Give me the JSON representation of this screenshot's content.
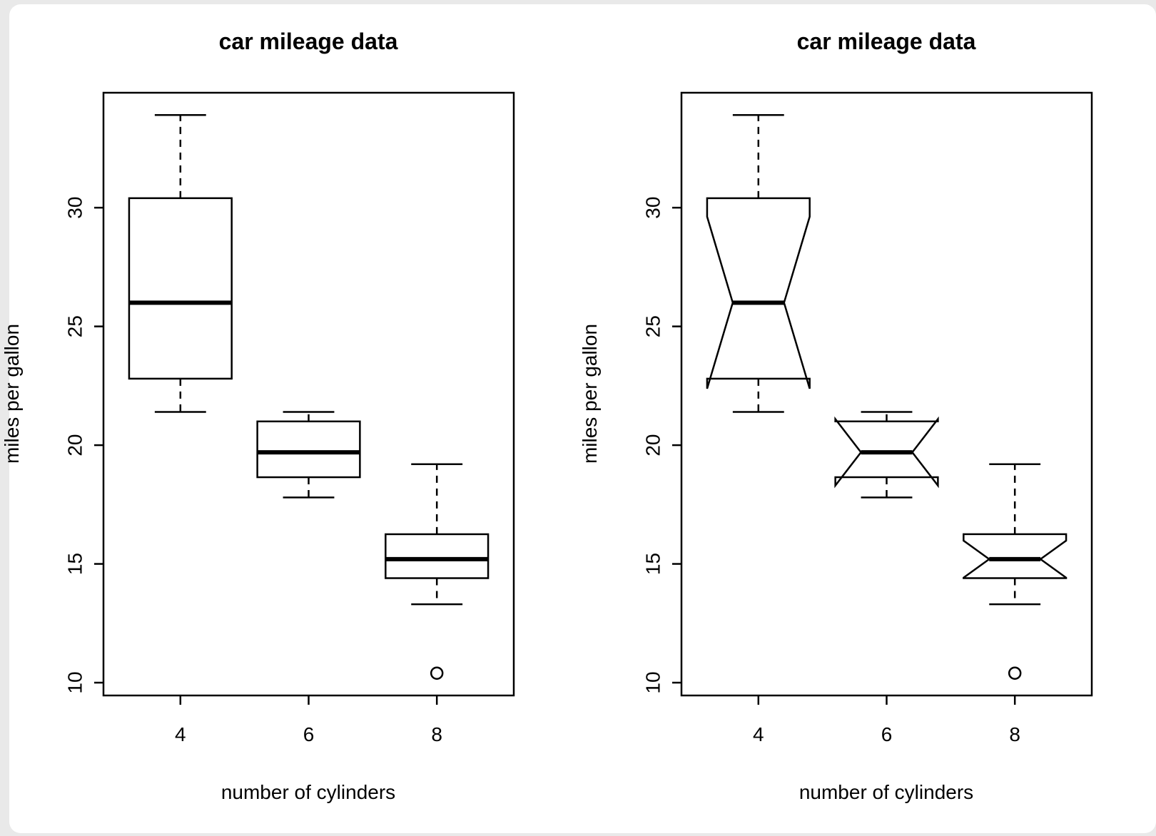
{
  "figure": {
    "surround_color": "#e9e9e9",
    "panel_background": "#ffffff",
    "line_color": "#000000",
    "text_color": "#000000"
  },
  "chart_data": [
    {
      "type": "boxplot",
      "notched": false,
      "title": "car mileage data",
      "xlabel": "number of cylinders",
      "ylabel": "miles per gallon",
      "categories": [
        "4",
        "6",
        "8"
      ],
      "ylim": [
        9.46,
        34.84
      ],
      "yticks": [
        10,
        15,
        20,
        25,
        30
      ],
      "grid": false,
      "legend": "none",
      "boxes": [
        {
          "category": "4",
          "whisker_low": 21.4,
          "q1": 22.8,
          "median": 26.0,
          "q3": 30.4,
          "whisker_high": 33.9,
          "outliers": []
        },
        {
          "category": "6",
          "whisker_low": 17.8,
          "q1": 18.65,
          "median": 19.7,
          "q3": 21.0,
          "whisker_high": 21.4,
          "outliers": []
        },
        {
          "category": "8",
          "whisker_low": 13.3,
          "q1": 14.4,
          "median": 15.2,
          "q3": 16.25,
          "whisker_high": 19.2,
          "outliers": [
            10.4
          ]
        }
      ]
    },
    {
      "type": "boxplot",
      "notched": true,
      "title": "car mileage data",
      "xlabel": "number of cylinders",
      "ylabel": "miles per gallon",
      "categories": [
        "4",
        "6",
        "8"
      ],
      "ylim": [
        9.46,
        34.84
      ],
      "yticks": [
        10,
        15,
        20,
        25,
        30
      ],
      "grid": false,
      "legend": "none",
      "boxes": [
        {
          "category": "4",
          "whisker_low": 21.4,
          "q1": 22.8,
          "median": 26.0,
          "q3": 30.4,
          "whisker_high": 33.9,
          "notch_low": 22.38,
          "notch_high": 29.62,
          "outliers": []
        },
        {
          "category": "6",
          "whisker_low": 17.8,
          "q1": 18.65,
          "median": 19.7,
          "q3": 21.0,
          "whisker_high": 21.4,
          "notch_low": 18.3,
          "notch_high": 21.1,
          "outliers": []
        },
        {
          "category": "8",
          "whisker_low": 13.3,
          "q1": 14.4,
          "median": 15.2,
          "q3": 16.25,
          "whisker_high": 19.2,
          "notch_low": 14.42,
          "notch_high": 15.98,
          "outliers": [
            10.4
          ]
        }
      ]
    }
  ]
}
